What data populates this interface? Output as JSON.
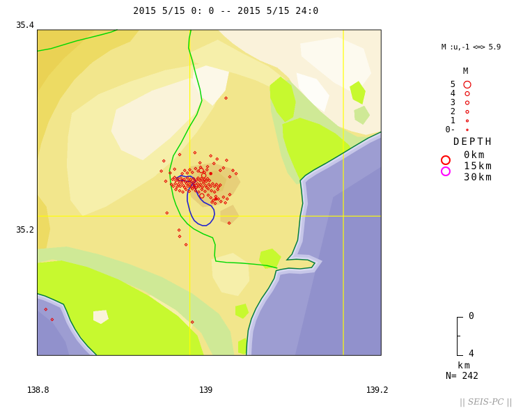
{
  "title": "2015 5/15 0: 0 -- 2015 5/15 24:0",
  "axis": {
    "lat_top": "35.4",
    "lat_mid": "35.2",
    "lon_left": "138.8",
    "lon_mid": "139",
    "lon_right": "139.2"
  },
  "legend": {
    "magnitude_range": "M :u,-1 <=> 5.9",
    "m_header": "M",
    "m_sizes": [
      {
        "label": "5",
        "r": 5
      },
      {
        "label": "4",
        "r": 3
      },
      {
        "label": "3",
        "r": 2.5
      },
      {
        "label": "2",
        "r": 2
      },
      {
        "label": "1",
        "r": 1.4
      },
      {
        "label": "0-",
        "r": 1.1
      }
    ],
    "depth_header": "DEPTH",
    "depth_items": [
      {
        "label": "0km",
        "color": null
      },
      {
        "label": "15km",
        "color": "#ff0000"
      },
      {
        "label": "30km",
        "color": "#ff00ff"
      }
    ]
  },
  "scale_bar": {
    "top_label": "0",
    "bottom_label": "4",
    "unit": "km"
  },
  "count_label": "N= 242",
  "watermark": "|| SEIS-PC ||",
  "colors": {
    "epicenter": "#e60000",
    "grid": "#ffff00",
    "boundary_green": "#00d800",
    "coast_green": "#007b3b",
    "caldera_blue": "#2323ce",
    "sea": "#9d9dd2"
  },
  "map": {
    "epicenters": {
      "small": [
        [
          267,
          272
        ],
        [
          270,
          269
        ],
        [
          272,
          274
        ],
        [
          275,
          271
        ],
        [
          277,
          275
        ],
        [
          280,
          270
        ],
        [
          282,
          274
        ],
        [
          285,
          272
        ],
        [
          287,
          276
        ],
        [
          290,
          270
        ],
        [
          292,
          275
        ],
        [
          295,
          272
        ],
        [
          297,
          276
        ],
        [
          300,
          271
        ],
        [
          302,
          275
        ],
        [
          305,
          273
        ],
        [
          307,
          270
        ],
        [
          310,
          274
        ],
        [
          312,
          271
        ],
        [
          315,
          275
        ],
        [
          317,
          272
        ],
        [
          320,
          275
        ],
        [
          322,
          271
        ],
        [
          325,
          274
        ],
        [
          265,
          280
        ],
        [
          268,
          283
        ],
        [
          271,
          279
        ],
        [
          274,
          284
        ],
        [
          276,
          280
        ],
        [
          279,
          283
        ],
        [
          281,
          278
        ],
        [
          284,
          282
        ],
        [
          286,
          285
        ],
        [
          289,
          279
        ],
        [
          291,
          283
        ],
        [
          294,
          280
        ],
        [
          296,
          284
        ],
        [
          299,
          278
        ],
        [
          301,
          282
        ],
        [
          304,
          285
        ],
        [
          306,
          279
        ],
        [
          309,
          283
        ],
        [
          311,
          280
        ],
        [
          314,
          284
        ],
        [
          316,
          278
        ],
        [
          319,
          282
        ],
        [
          321,
          285
        ],
        [
          324,
          280
        ],
        [
          327,
          283
        ],
        [
          330,
          279
        ],
        [
          333,
          283
        ],
        [
          336,
          280
        ],
        [
          339,
          284
        ],
        [
          342,
          281
        ],
        [
          272,
          288
        ],
        [
          278,
          290
        ],
        [
          283,
          292
        ],
        [
          288,
          288
        ],
        [
          293,
          291
        ],
        [
          298,
          287
        ],
        [
          303,
          290
        ],
        [
          308,
          292
        ],
        [
          313,
          288
        ],
        [
          318,
          291
        ],
        [
          323,
          287
        ],
        [
          328,
          290
        ],
        [
          333,
          292
        ],
        [
          338,
          288
        ],
        [
          253,
          243
        ],
        [
          249,
          259
        ],
        [
          256,
          275
        ],
        [
          263,
          262
        ],
        [
          270,
          256
        ],
        [
          278,
          233
        ],
        [
          302,
          230
        ],
        [
          310,
          246
        ],
        [
          322,
          252
        ],
        [
          332,
          247
        ],
        [
          342,
          258
        ],
        [
          352,
          242
        ],
        [
          362,
          258
        ],
        [
          367,
          263
        ],
        [
          357,
          268
        ],
        [
          347,
          254
        ],
        [
          337,
          240
        ],
        [
          327,
          235
        ],
        [
          303,
          255
        ],
        [
          307,
          259
        ],
        [
          311,
          253
        ],
        [
          317,
          261
        ],
        [
          321,
          257
        ],
        [
          298,
          261
        ],
        [
          294,
          257
        ],
        [
          290,
          262
        ],
        [
          286,
          258
        ],
        [
          282,
          263
        ],
        [
          323,
          297
        ],
        [
          327,
          301
        ],
        [
          331,
          305
        ],
        [
          335,
          299
        ],
        [
          339,
          303
        ],
        [
          343,
          307
        ],
        [
          334,
          310
        ],
        [
          329,
          308
        ],
        [
          347,
          300
        ],
        [
          353,
          303
        ],
        [
          357,
          296
        ],
        [
          350,
          309
        ],
        [
          258,
          325
        ],
        [
          277,
          352
        ],
        [
          278,
          362
        ],
        [
          288,
          375
        ],
        [
          356,
          341
        ],
        [
          298,
          497
        ],
        [
          67,
          477
        ],
        [
          77,
          493
        ],
        [
          351,
          144
        ]
      ],
      "medium": [
        [
          312,
          258
        ],
        [
          316,
          266
        ],
        [
          313,
          298
        ],
        [
          303,
          283
        ]
      ],
      "filled": [
        [
          327,
          263
        ],
        [
          335,
          303
        ]
      ]
    }
  }
}
